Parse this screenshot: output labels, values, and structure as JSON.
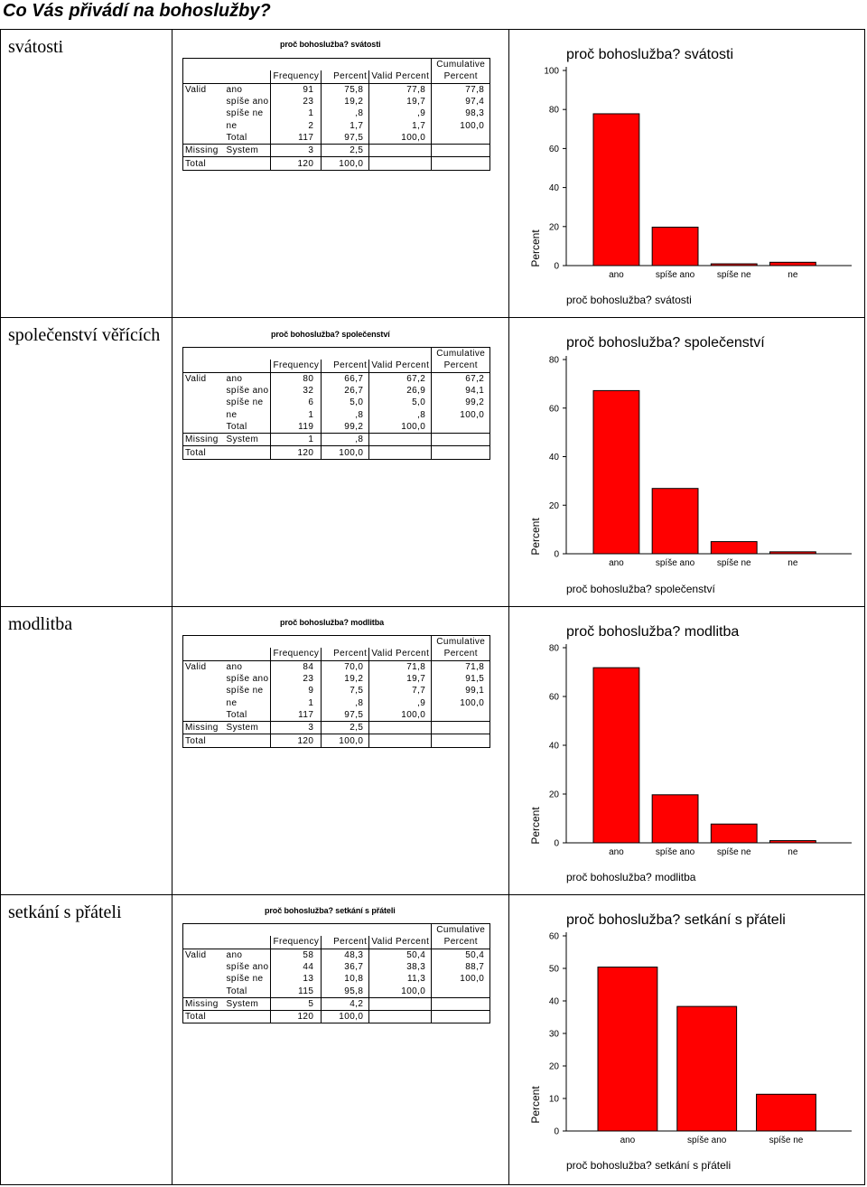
{
  "page_title": "Co Vás přivádí na bohoslužby?",
  "headers": {
    "frequency": "Frequency",
    "percent": "Percent",
    "valid_percent": "Valid Percent",
    "cumulative_1": "Cumulative",
    "cumulative_2": "Percent"
  },
  "sections": [
    {
      "label": "svátosti",
      "table_title": "proč bohoslužba? svátosti",
      "rows": [
        {
          "group": "Valid",
          "cat": "ano",
          "freq": "91",
          "pct": "75,8",
          "vpct": "77,8",
          "cum": "77,8"
        },
        {
          "group": "",
          "cat": "spíše ano",
          "freq": "23",
          "pct": "19,2",
          "vpct": "19,7",
          "cum": "97,4"
        },
        {
          "group": "",
          "cat": "spíše ne",
          "freq": "1",
          "pct": ",8",
          "vpct": ",9",
          "cum": "98,3"
        },
        {
          "group": "",
          "cat": "ne",
          "freq": "2",
          "pct": "1,7",
          "vpct": "1,7",
          "cum": "100,0"
        },
        {
          "group": "",
          "cat": "Total",
          "freq": "117",
          "pct": "97,5",
          "vpct": "100,0",
          "cum": ""
        },
        {
          "group": "Missing",
          "cat": "System",
          "freq": "3",
          "pct": "2,5",
          "vpct": "",
          "cum": ""
        },
        {
          "group": "Total",
          "cat": "",
          "freq": "120",
          "pct": "100,0",
          "vpct": "",
          "cum": ""
        }
      ]
    },
    {
      "label": "společenství věřících",
      "table_title": "proč bohoslužba? společenství",
      "rows": [
        {
          "group": "Valid",
          "cat": "ano",
          "freq": "80",
          "pct": "66,7",
          "vpct": "67,2",
          "cum": "67,2"
        },
        {
          "group": "",
          "cat": "spíše ano",
          "freq": "32",
          "pct": "26,7",
          "vpct": "26,9",
          "cum": "94,1"
        },
        {
          "group": "",
          "cat": "spíše ne",
          "freq": "6",
          "pct": "5,0",
          "vpct": "5,0",
          "cum": "99,2"
        },
        {
          "group": "",
          "cat": "ne",
          "freq": "1",
          "pct": ",8",
          "vpct": ",8",
          "cum": "100,0"
        },
        {
          "group": "",
          "cat": "Total",
          "freq": "119",
          "pct": "99,2",
          "vpct": "100,0",
          "cum": ""
        },
        {
          "group": "Missing",
          "cat": "System",
          "freq": "1",
          "pct": ",8",
          "vpct": "",
          "cum": ""
        },
        {
          "group": "Total",
          "cat": "",
          "freq": "120",
          "pct": "100,0",
          "vpct": "",
          "cum": ""
        }
      ]
    },
    {
      "label": "modlitba",
      "table_title": "proč bohoslužba? modlitba",
      "rows": [
        {
          "group": "Valid",
          "cat": "ano",
          "freq": "84",
          "pct": "70,0",
          "vpct": "71,8",
          "cum": "71,8"
        },
        {
          "group": "",
          "cat": "spíše ano",
          "freq": "23",
          "pct": "19,2",
          "vpct": "19,7",
          "cum": "91,5"
        },
        {
          "group": "",
          "cat": "spíše ne",
          "freq": "9",
          "pct": "7,5",
          "vpct": "7,7",
          "cum": "99,1"
        },
        {
          "group": "",
          "cat": "ne",
          "freq": "1",
          "pct": ",8",
          "vpct": ",9",
          "cum": "100,0"
        },
        {
          "group": "",
          "cat": "Total",
          "freq": "117",
          "pct": "97,5",
          "vpct": "100,0",
          "cum": ""
        },
        {
          "group": "Missing",
          "cat": "System",
          "freq": "3",
          "pct": "2,5",
          "vpct": "",
          "cum": ""
        },
        {
          "group": "Total",
          "cat": "",
          "freq": "120",
          "pct": "100,0",
          "vpct": "",
          "cum": ""
        }
      ]
    },
    {
      "label": "setkání s přáteli",
      "table_title": "proč bohoslužba? setkání s přáteli",
      "rows": [
        {
          "group": "Valid",
          "cat": "ano",
          "freq": "58",
          "pct": "48,3",
          "vpct": "50,4",
          "cum": "50,4"
        },
        {
          "group": "",
          "cat": "spíše ano",
          "freq": "44",
          "pct": "36,7",
          "vpct": "38,3",
          "cum": "88,7"
        },
        {
          "group": "",
          "cat": "spíše ne",
          "freq": "13",
          "pct": "10,8",
          "vpct": "11,3",
          "cum": "100,0"
        },
        {
          "group": "",
          "cat": "Total",
          "freq": "115",
          "pct": "95,8",
          "vpct": "100,0",
          "cum": ""
        },
        {
          "group": "Missing",
          "cat": "System",
          "freq": "5",
          "pct": "4,2",
          "vpct": "",
          "cum": ""
        },
        {
          "group": "Total",
          "cat": "",
          "freq": "120",
          "pct": "100,0",
          "vpct": "",
          "cum": ""
        }
      ]
    }
  ],
  "chart_data": [
    {
      "type": "bar",
      "title": "proč bohoslužba? svátosti",
      "xlabel": "proč bohoslužba? svátosti",
      "ylabel": "Percent",
      "categories": [
        "ano",
        "spíše ano",
        "spíše ne",
        "ne"
      ],
      "values": [
        77.8,
        19.7,
        0.9,
        1.7
      ],
      "ylim": [
        0,
        100
      ],
      "yticks": [
        0,
        20,
        40,
        60,
        80,
        100
      ],
      "bar_color": "#ff0000",
      "grid": false
    },
    {
      "type": "bar",
      "title": "proč bohoslužba? společenství",
      "xlabel": "proč bohoslužba? společenství",
      "ylabel": "Percent",
      "categories": [
        "ano",
        "spíše ano",
        "spíše ne",
        "ne"
      ],
      "values": [
        67.2,
        26.9,
        5.0,
        0.8
      ],
      "ylim": [
        0,
        80
      ],
      "yticks": [
        0,
        20,
        40,
        60,
        80
      ],
      "bar_color": "#ff0000",
      "grid": false
    },
    {
      "type": "bar",
      "title": "proč bohoslužba? modlitba",
      "xlabel": "proč bohoslužba? modlitba",
      "ylabel": "Percent",
      "categories": [
        "ano",
        "spíše ano",
        "spíše ne",
        "ne"
      ],
      "values": [
        71.8,
        19.7,
        7.7,
        0.9
      ],
      "ylim": [
        0,
        80
      ],
      "yticks": [
        0,
        20,
        40,
        60,
        80
      ],
      "bar_color": "#ff0000",
      "grid": false
    },
    {
      "type": "bar",
      "title": "proč bohoslužba? setkání s přáteli",
      "xlabel": "proč bohoslužba? setkání s přáteli",
      "ylabel": "Percent",
      "categories": [
        "ano",
        "spíše ano",
        "spíše ne"
      ],
      "values": [
        50.4,
        38.3,
        11.3
      ],
      "ylim": [
        0,
        60
      ],
      "yticks": [
        0,
        10,
        20,
        30,
        40,
        50,
        60
      ],
      "bar_color": "#ff0000",
      "grid": false
    }
  ]
}
